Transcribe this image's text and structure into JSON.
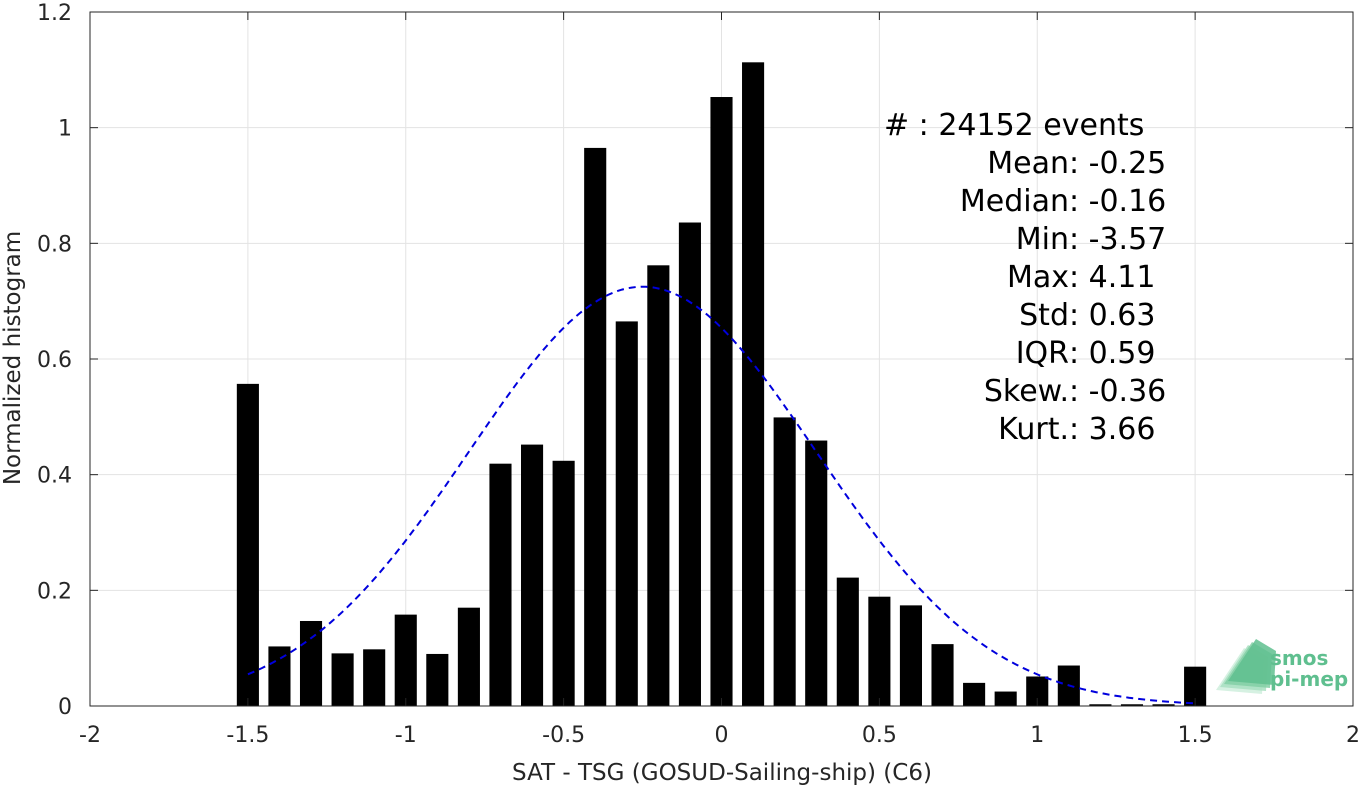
{
  "chart_data": {
    "type": "bar",
    "xlabel": "SAT - TSG (GOSUD-Sailing-ship) (C6)",
    "ylabel": "Normalized histogram",
    "xlim": [
      -2,
      2
    ],
    "ylim": [
      0,
      1.2
    ],
    "x_ticks": [
      -2,
      -1.5,
      -1,
      -0.5,
      0,
      0.5,
      1,
      1.5,
      2
    ],
    "x_tick_labels": [
      "-2",
      "-1.5",
      "-1",
      "-0.5",
      "0",
      "0.5",
      "1",
      "1.5",
      "2"
    ],
    "y_ticks": [
      0,
      0.2,
      0.4,
      0.6,
      0.8,
      1,
      1.2
    ],
    "y_tick_labels": [
      "0",
      "0.2",
      "0.4",
      "0.6",
      "0.8",
      "1",
      "1.2"
    ],
    "grid": true,
    "bar_color": "#000000",
    "bar_width": 0.07,
    "bins": [
      -1.5,
      -1.4,
      -1.3,
      -1.2,
      -1.1,
      -1.0,
      -0.9,
      -0.8,
      -0.7,
      -0.6,
      -0.5,
      -0.4,
      -0.3,
      -0.2,
      -0.1,
      0.0,
      0.1,
      0.2,
      0.3,
      0.4,
      0.5,
      0.6,
      0.7,
      0.8,
      0.9,
      1.0,
      1.1,
      1.2,
      1.3,
      1.4,
      1.5
    ],
    "values": [
      0.557,
      0.103,
      0.147,
      0.091,
      0.098,
      0.158,
      0.09,
      0.17,
      0.419,
      0.452,
      0.424,
      0.965,
      0.665,
      0.762,
      0.836,
      1.053,
      1.113,
      0.499,
      0.459,
      0.222,
      0.189,
      0.174,
      0.107,
      0.04,
      0.025,
      0.051,
      0.07,
      0.003,
      0.003,
      0.003,
      0.068
    ],
    "fit_curve": {
      "style": "dashed",
      "color": "#0000dd",
      "mean": -0.25,
      "std": 0.55,
      "peak": 0.725,
      "x_range": [
        -1.5,
        1.5
      ]
    },
    "stats": {
      "count": {
        "key": "#",
        "value": ": 24152 events"
      },
      "lines": [
        {
          "key": "Mean",
          "value": "-0.25"
        },
        {
          "key": "Median",
          "value": "-0.16"
        },
        {
          "key": "Min",
          "value": "-3.57"
        },
        {
          "key": "Max",
          "value": "4.11"
        },
        {
          "key": "Std",
          "value": "0.63"
        },
        {
          "key": "IQR",
          "value": "0.59"
        },
        {
          "key": "Skew.",
          "value": "-0.36"
        },
        {
          "key": "Kurt.",
          "value": "3.66"
        }
      ]
    },
    "logo": {
      "line1": "smos",
      "line2": "pi-mep",
      "color": "#5fbf8f"
    }
  }
}
